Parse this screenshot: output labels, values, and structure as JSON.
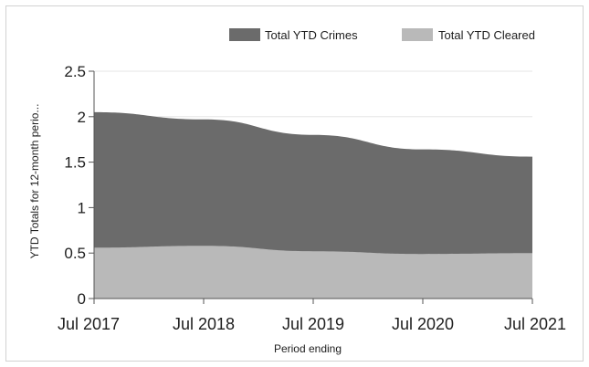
{
  "chart_data": {
    "type": "area",
    "x": [
      "Jul 2017",
      "Jul 2018",
      "Jul 2019",
      "Jul 2020",
      "Jul 2021"
    ],
    "series": [
      {
        "name": "Total YTD Crimes",
        "values": [
          2.05,
          1.97,
          1.8,
          1.64,
          1.56
        ],
        "color": "#6b6b6b"
      },
      {
        "name": "Total YTD Cleared",
        "values": [
          0.56,
          0.58,
          0.52,
          0.49,
          0.5
        ],
        "color": "#b9b9b9"
      }
    ],
    "xlabel": "Period ending",
    "ylabel": "YTD Totals for 12-month perio...",
    "ylim": [
      0,
      2.5
    ],
    "yticks": [
      "0",
      "0.5",
      "1",
      "1.5",
      "2",
      "2.5"
    ],
    "grid": true,
    "legend_position": "top-right"
  }
}
